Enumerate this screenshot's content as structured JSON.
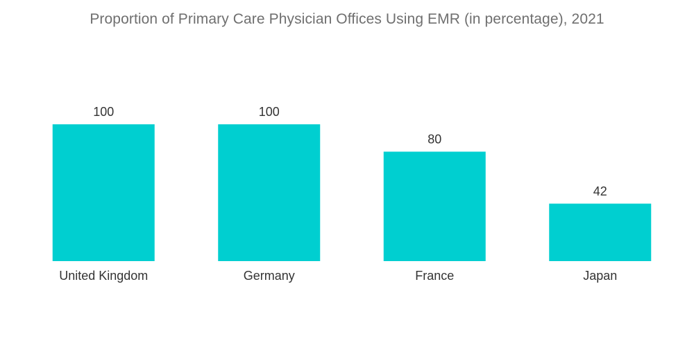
{
  "chart_data": {
    "type": "bar",
    "title": "Proportion of Primary Care Physician Offices Using EMR (in percentage), 2021",
    "categories": [
      "United Kingdom",
      "Germany",
      "France",
      "Japan"
    ],
    "values": [
      100,
      100,
      80,
      42
    ],
    "xlabel": "",
    "ylabel": "",
    "ylim": [
      0,
      100
    ],
    "grid": false,
    "legend": "none",
    "bar_color": "#00cfd0"
  }
}
